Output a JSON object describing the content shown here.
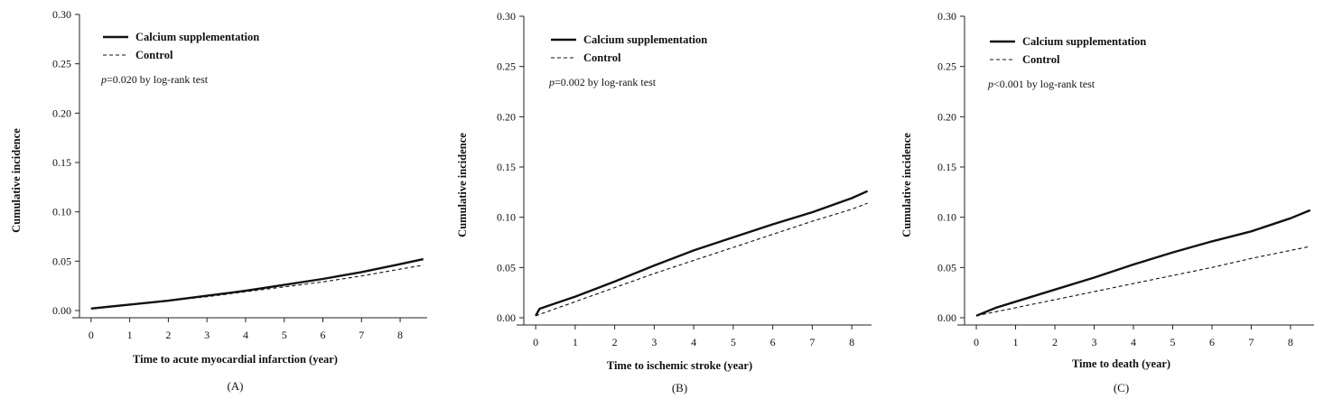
{
  "chart_data": [
    {
      "type": "line",
      "panel_label": "(A)",
      "xlabel": "Time to acute myocardial infarction (year)",
      "ylabel": "Cumulative incidence",
      "xlim": [
        -0.3,
        8.7
      ],
      "ylim": [
        0,
        0.3
      ],
      "xticks": [
        "0",
        "1",
        "2",
        "3",
        "4",
        "5",
        "6",
        "7",
        "8"
      ],
      "yticks": [
        "0.00",
        "0.05",
        "0.10",
        "0.15",
        "0.20",
        "0.25",
        "0.30"
      ],
      "annotation": {
        "p": "p",
        "rest": "=0.020 by log-rank test"
      },
      "legend": {
        "position": "top-left"
      },
      "grid": false,
      "series": [
        {
          "name": "Calcium supplementation",
          "style": "solid",
          "x": [
            0,
            1,
            2,
            3,
            4,
            5,
            6,
            7,
            8,
            8.6
          ],
          "y": [
            0.002,
            0.006,
            0.01,
            0.015,
            0.02,
            0.026,
            0.032,
            0.039,
            0.047,
            0.052
          ]
        },
        {
          "name": "Control",
          "style": "dashed",
          "x": [
            0,
            1,
            2,
            3,
            4,
            5,
            6,
            7,
            8,
            8.6
          ],
          "y": [
            0.002,
            0.006,
            0.01,
            0.014,
            0.019,
            0.024,
            0.029,
            0.035,
            0.042,
            0.046
          ]
        }
      ]
    },
    {
      "type": "line",
      "panel_label": "(B)",
      "xlabel": "Time to ischemic stroke (year)",
      "ylabel": "Cumulative incidence",
      "xlim": [
        -0.3,
        8.5
      ],
      "ylim": [
        0,
        0.3
      ],
      "xticks": [
        "0",
        "1",
        "2",
        "3",
        "4",
        "5",
        "6",
        "7",
        "8"
      ],
      "yticks": [
        "0.00",
        "0.05",
        "0.10",
        "0.15",
        "0.20",
        "0.25",
        "0.30"
      ],
      "annotation": {
        "p": "p",
        "rest": "=0.002 by log-rank test"
      },
      "legend": {
        "position": "top-left"
      },
      "grid": false,
      "series": [
        {
          "name": "Calcium supplementation",
          "style": "solid",
          "x": [
            0,
            0.1,
            1,
            2,
            3,
            4,
            5,
            6,
            7,
            8,
            8.4
          ],
          "y": [
            0.002,
            0.009,
            0.021,
            0.036,
            0.052,
            0.067,
            0.08,
            0.093,
            0.105,
            0.119,
            0.126
          ]
        },
        {
          "name": "Control",
          "style": "dashed",
          "x": [
            0,
            1,
            2,
            3,
            4,
            5,
            6,
            7,
            8,
            8.4
          ],
          "y": [
            0.002,
            0.016,
            0.03,
            0.044,
            0.057,
            0.07,
            0.083,
            0.096,
            0.108,
            0.114
          ]
        }
      ]
    },
    {
      "type": "line",
      "panel_label": "(C)",
      "xlabel": "Time to death (year)",
      "ylabel": "Cumulative incidence",
      "xlim": [
        -0.3,
        8.6
      ],
      "ylim": [
        0,
        0.3
      ],
      "xticks": [
        "0",
        "1",
        "2",
        "3",
        "4",
        "5",
        "6",
        "7",
        "8"
      ],
      "yticks": [
        "0.00",
        "0.05",
        "0.10",
        "0.15",
        "0.20",
        "0.25",
        "0.30"
      ],
      "annotation": {
        "p": "p",
        "rest": "<0.001 by log-rank test"
      },
      "legend": {
        "position": "top-left"
      },
      "grid": false,
      "series": [
        {
          "name": "Calcium supplementation",
          "style": "solid",
          "x": [
            0,
            0.5,
            1,
            2,
            3,
            4,
            5,
            6,
            7,
            8,
            8.5
          ],
          "y": [
            0.002,
            0.01,
            0.016,
            0.028,
            0.04,
            0.053,
            0.065,
            0.076,
            0.086,
            0.099,
            0.107
          ]
        },
        {
          "name": "Control",
          "style": "dashed",
          "x": [
            0,
            1,
            2,
            3,
            4,
            5,
            6,
            7,
            8,
            8.5
          ],
          "y": [
            0.002,
            0.01,
            0.018,
            0.026,
            0.034,
            0.042,
            0.05,
            0.059,
            0.067,
            0.071
          ]
        }
      ]
    }
  ]
}
